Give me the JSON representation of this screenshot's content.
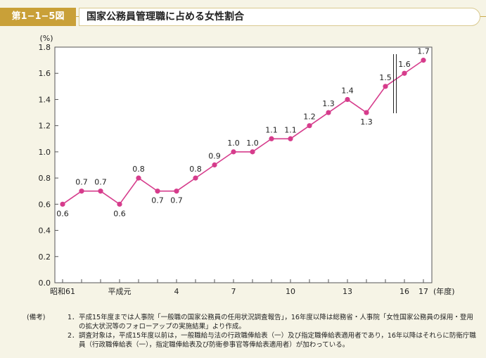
{
  "header": {
    "figure_label": "第1−1−5図",
    "title": "国家公務員管理職に占める女性割合"
  },
  "chart_data": {
    "type": "line",
    "title": "国家公務員管理職に占める女性割合",
    "ylabel": "(%)",
    "xlabel": "(年度)",
    "ylim": [
      0,
      1.8
    ],
    "yticks": [
      "0.0",
      "0.2",
      "0.4",
      "0.6",
      "0.8",
      "1.0",
      "1.2",
      "1.4",
      "1.6",
      "1.8"
    ],
    "x_tick_labels": [
      {
        "index": 0,
        "label": "昭和61"
      },
      {
        "index": 3,
        "label": "平成元"
      },
      {
        "index": 6,
        "label": "4"
      },
      {
        "index": 9,
        "label": "7"
      },
      {
        "index": 12,
        "label": "10"
      },
      {
        "index": 15,
        "label": "13"
      },
      {
        "index": 18,
        "label": "16"
      },
      {
        "index": 19,
        "label": "17"
      }
    ],
    "series": [
      {
        "color": "#d63c8c",
        "values": [
          0.6,
          0.7,
          0.7,
          0.6,
          0.8,
          0.7,
          0.7,
          0.8,
          0.9,
          1.0,
          1.0,
          1.1,
          1.1,
          1.2,
          1.3,
          1.4,
          1.3,
          1.5,
          1.6,
          1.7
        ],
        "labels": [
          "0.6",
          "0.7",
          "0.7",
          "0.6",
          "0.8",
          "0.7",
          "0.7",
          "0.8",
          "0.9",
          "1.0",
          "1.0",
          "1.1",
          "1.1",
          "1.2",
          "1.3",
          "1.4",
          "1.3",
          "1.5",
          "1.6",
          "1.7"
        ],
        "label_positions": [
          "below",
          "above",
          "above",
          "below",
          "above",
          "below",
          "below",
          "above",
          "above",
          "above",
          "above",
          "above",
          "above",
          "above",
          "above",
          "above",
          "below",
          "above",
          "above",
          "above"
        ]
      }
    ],
    "break_after_index": 17,
    "grid": false
  },
  "notes": {
    "lead": "(備考)",
    "items": [
      {
        "num": "1．",
        "text": "平成15年度までは人事院「一般職の国家公務員の任用状況調査報告」，16年度以降は総務省・人事院「女性国家公務員の採用・登用の拡大状況等のフォローアップの実施結果」より作成。"
      },
      {
        "num": "2．",
        "text": "調査対象は，平成15年度以前は，一般職給与法の行政職俸給表（一）及び指定職俸給表適用者であり，16年以降はそれらに防衛庁職員（行政職俸給表（一），指定職俸給表及び防衛参事官等俸給表適用者）が加わっている。"
      }
    ]
  }
}
